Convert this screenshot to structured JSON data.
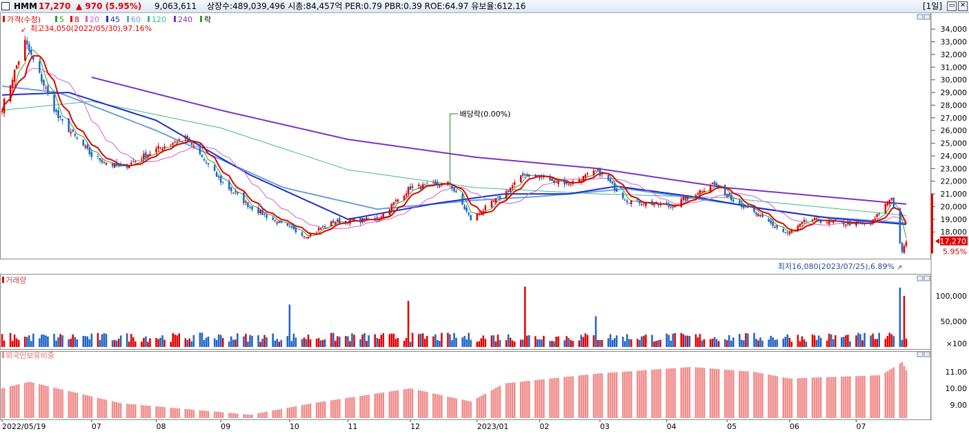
{
  "header": {
    "name": "HMM",
    "price": "17,270",
    "change": "▲ 970 (5.95%)",
    "volume": "9,063,611",
    "info": "상장수:489,039,496 시총:84,457억 PER:0.79 PBR:0.39 ROE:64.97 유보율:612.16",
    "period": "[1일]"
  },
  "legend": {
    "price_label": "가격(수정)",
    "ma": [
      "5",
      "8",
      "20",
      "45",
      "60",
      "120",
      "240"
    ],
    "extra": "락"
  },
  "annotations": {
    "high": "최고34,050(2022/05/30),97.16%",
    "low": "최저16,080(2023/07/25),6.89%",
    "dividend": "배당락(0.00%)",
    "current_price": "17,270",
    "current_pct": "5.95%"
  },
  "panels": {
    "volume_title": "거래량",
    "foreign_title": "외국인보유비중"
  },
  "x_labels": [
    "2022/05/19",
    "07",
    "08",
    "09",
    "10",
    "11",
    "12",
    "2023/01",
    "02",
    "03",
    "04",
    "05",
    "06",
    "07"
  ],
  "price_axis": [
    "34,000",
    "33,000",
    "32,000",
    "31,000",
    "30,000",
    "29,000",
    "28,000",
    "27,000",
    "26,000",
    "25,000",
    "24,000",
    "23,000",
    "22,000",
    "21,000",
    "20,000",
    "19,000",
    "18,000"
  ],
  "volume_axis": [
    "100,000",
    "50,000",
    "×100"
  ],
  "foreign_axis": [
    "11.00",
    "10.00",
    "9.00"
  ],
  "colors": {
    "up": "#e00000",
    "down": "#1f63c6",
    "ma5": "#2aa02a",
    "ma8": "#e00000",
    "ma20": "#d060c0",
    "ma45": "#1a2fc8",
    "ma60": "#6aa0d8",
    "ma120": "#40b890",
    "ma240": "#8030c0",
    "foreign": "#f08c8c"
  },
  "chart_data": {
    "type": "candlestick",
    "title": "HMM",
    "x_range": [
      "2022/05/19",
      "2023/07/27"
    ],
    "price_ylim": [
      16000,
      34500
    ],
    "price_anchors": [
      [
        "2022/05/19",
        27800
      ],
      [
        "2022/05/30",
        33000
      ],
      [
        "2022/06/15",
        27000
      ],
      [
        "2022/07/01",
        24000
      ],
      [
        "2022/07/15",
        23000
      ],
      [
        "2022/08/01",
        24500
      ],
      [
        "2022/08/15",
        25500
      ],
      [
        "2022/09/01",
        22000
      ],
      [
        "2022/09/15",
        20000
      ],
      [
        "2022/10/01",
        18500
      ],
      [
        "2022/10/12",
        17700
      ],
      [
        "2022/10/25",
        18800
      ],
      [
        "2022/11/15",
        19000
      ],
      [
        "2022/12/01",
        21500
      ],
      [
        "2022/12/20",
        21800
      ],
      [
        "2022/12/30",
        19000
      ],
      [
        "2023/01/15",
        21000
      ],
      [
        "2023/01/25",
        22600
      ],
      [
        "2023/02/15",
        21800
      ],
      [
        "2023/03/01",
        22800
      ],
      [
        "2023/03/15",
        20500
      ],
      [
        "2023/04/05",
        20000
      ],
      [
        "2023/04/25",
        21800
      ],
      [
        "2023/05/10",
        20000
      ],
      [
        "2023/05/31",
        17800
      ],
      [
        "2023/06/10",
        19000
      ],
      [
        "2023/06/25",
        18700
      ],
      [
        "2023/07/10",
        18600
      ],
      [
        "2023/07/20",
        20800
      ],
      [
        "2023/07/25",
        16300
      ],
      [
        "2023/07/27",
        17270
      ]
    ],
    "ma_lines": {
      "ma240": [
        [
          "2022/07/01",
          30200
        ],
        [
          "2022/09/01",
          27600
        ],
        [
          "2022/11/01",
          25300
        ],
        [
          "2023/01/01",
          23900
        ],
        [
          "2023/03/01",
          23000
        ],
        [
          "2023/05/01",
          21500
        ],
        [
          "2023/07/27",
          20200
        ]
      ],
      "ma120": [
        [
          "2022/05/19",
          27600
        ],
        [
          "2022/07/01",
          28300
        ],
        [
          "2022/09/01",
          26200
        ],
        [
          "2022/11/01",
          22900
        ],
        [
          "2023/01/01",
          21500
        ],
        [
          "2023/03/01",
          21000
        ],
        [
          "2023/05/01",
          20700
        ],
        [
          "2023/07/27",
          19300
        ]
      ],
      "ma60": [
        [
          "2022/05/19",
          29500
        ],
        [
          "2022/06/15",
          29000
        ],
        [
          "2022/08/01",
          26000
        ],
        [
          "2022/10/01",
          21500
        ],
        [
          "2022/11/15",
          19800
        ],
        [
          "2023/01/01",
          20500
        ],
        [
          "2023/02/01",
          20800
        ],
        [
          "2023/03/15",
          21400
        ],
        [
          "2023/05/01",
          20300
        ],
        [
          "2023/06/15",
          19200
        ],
        [
          "2023/07/27",
          18700
        ]
      ],
      "ma45": [
        [
          "2022/05/19",
          28800
        ],
        [
          "2022/06/20",
          29000
        ],
        [
          "2022/08/01",
          26800
        ],
        [
          "2022/09/15",
          22500
        ],
        [
          "2022/11/01",
          19000
        ],
        [
          "2022/12/15",
          20300
        ],
        [
          "2023/01/15",
          21000
        ],
        [
          "2023/02/15",
          21000
        ],
        [
          "2023/03/10",
          21600
        ],
        [
          "2023/04/15",
          20800
        ],
        [
          "2023/05/20",
          19800
        ],
        [
          "2023/06/20",
          19100
        ],
        [
          "2023/07/27",
          18600
        ]
      ]
    },
    "volume_ylim": [
      0,
      120000
    ],
    "volume_spikes": [
      [
        "2022/10/04",
        83000
      ],
      [
        "2022/11/30",
        90000
      ],
      [
        "2023/01/25",
        118000
      ],
      [
        "2023/02/28",
        60000
      ],
      [
        "2023/07/24",
        116000
      ],
      [
        "2023/07/26",
        100000
      ]
    ],
    "foreign_ylim": [
      8.2,
      11.8
    ],
    "foreign_anchors": [
      [
        "2022/05/19",
        10.0
      ],
      [
        "2022/06/01",
        10.4
      ],
      [
        "2022/07/15",
        9.1
      ],
      [
        "2022/09/15",
        8.4
      ],
      [
        "2022/10/15",
        9.1
      ],
      [
        "2022/12/01",
        10.0
      ],
      [
        "2022/12/30",
        9.2
      ],
      [
        "2023/01/15",
        10.3
      ],
      [
        "2023/03/01",
        10.9
      ],
      [
        "2023/04/15",
        11.3
      ],
      [
        "2023/05/15",
        11.0
      ],
      [
        "2023/06/01",
        10.6
      ],
      [
        "2023/07/15",
        10.8
      ],
      [
        "2023/07/25",
        11.6
      ],
      [
        "2023/07/27",
        11.1
      ]
    ]
  }
}
